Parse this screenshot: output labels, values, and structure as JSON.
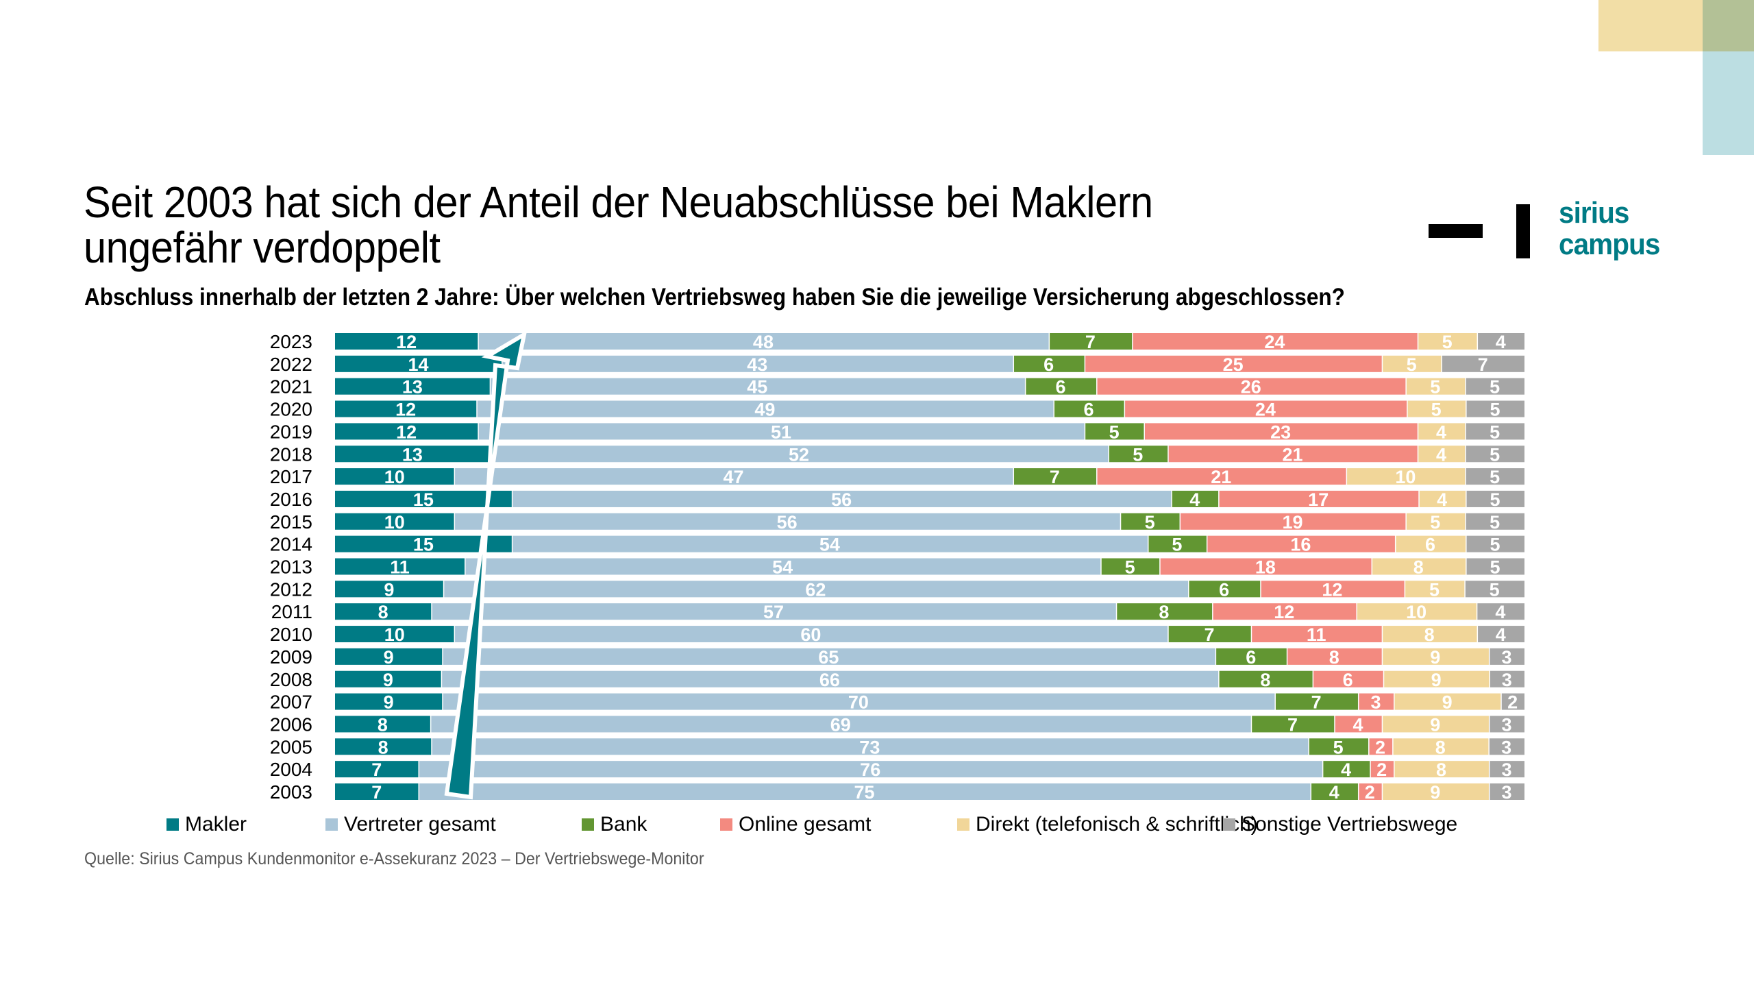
{
  "slide": {
    "title_line1": "Seit 2003 hat sich der Anteil der Neuabschlüsse bei Maklern",
    "title_line2": "ungefähr verdoppelt",
    "subtitle": "Abschluss innerhalb der letzten 2 Jahre: Über welchen Vertriebsweg haben Sie die jeweilige Versicherung abgeschlossen?",
    "source": "Quelle: Sirius Campus Kundenmonitor e-Assekuranz 2023 – Der Vertriebswege-Monitor",
    "logo": {
      "line1": "sirius",
      "line2": "campus",
      "color": "#007b85"
    },
    "decor_colors": {
      "yellow": "#f2dea6",
      "green": "#b3c196",
      "blue": "#bcdee2"
    }
  },
  "chart_data": {
    "type": "bar",
    "orientation": "horizontal",
    "stacked": true,
    "title": "Abschluss innerhalb der letzten 2 Jahre: Über welchen Vertriebsweg haben Sie die jeweilige Versicherung abgeschlossen?",
    "xlabel": "",
    "ylabel": "",
    "unit": "%",
    "xlim": [
      0,
      100
    ],
    "grid": false,
    "legend_position": "bottom",
    "annotation": "upward arrow over Makler segments from 2003 to 2023",
    "categories": [
      "2023",
      "2022",
      "2021",
      "2020",
      "2019",
      "2018",
      "2017",
      "2016",
      "2015",
      "2014",
      "2013",
      "2012",
      "2011",
      "2010",
      "2009",
      "2008",
      "2007",
      "2006",
      "2005",
      "2004",
      "2003"
    ],
    "series": [
      {
        "name": "Makler",
        "color": "#007b85",
        "values": [
          12,
          14,
          13,
          12,
          12,
          13,
          10,
          15,
          10,
          15,
          11,
          9,
          8,
          10,
          9,
          9,
          9,
          8,
          8,
          7,
          7
        ]
      },
      {
        "name": "Vertreter gesamt",
        "color": "#a9c5d8",
        "values": [
          48,
          43,
          45,
          49,
          51,
          52,
          47,
          56,
          56,
          54,
          54,
          62,
          57,
          60,
          65,
          66,
          70,
          69,
          73,
          76,
          75
        ]
      },
      {
        "name": "Bank",
        "color": "#629632",
        "values": [
          7,
          6,
          6,
          6,
          5,
          5,
          7,
          4,
          5,
          5,
          5,
          6,
          8,
          7,
          6,
          8,
          7,
          7,
          5,
          4,
          4
        ]
      },
      {
        "name": "Online gesamt",
        "color": "#f38a80",
        "values": [
          24,
          25,
          26,
          24,
          23,
          21,
          21,
          17,
          19,
          16,
          18,
          12,
          12,
          11,
          8,
          6,
          3,
          4,
          2,
          2,
          2
        ]
      },
      {
        "name": "Direkt (telefonisch & schriftlich)",
        "color": "#f1d699",
        "values": [
          5,
          5,
          5,
          5,
          4,
          4,
          10,
          4,
          5,
          6,
          8,
          5,
          10,
          8,
          9,
          9,
          9,
          9,
          8,
          8,
          9
        ]
      },
      {
        "name": "Sonstige Vertriebswege",
        "color": "#a6a6a6",
        "values": [
          4,
          7,
          5,
          5,
          5,
          5,
          5,
          5,
          5,
          5,
          5,
          5,
          4,
          4,
          3,
          3,
          2,
          3,
          3,
          3,
          3
        ]
      }
    ]
  }
}
